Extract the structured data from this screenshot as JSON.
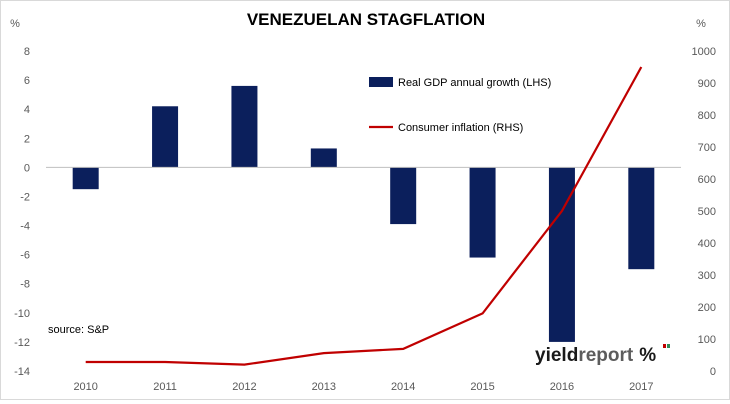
{
  "chart_data": {
    "type": "bar+line",
    "title": "VENEZUELAN STAGFLATION",
    "categories": [
      "2010",
      "2011",
      "2012",
      "2013",
      "2014",
      "2015",
      "2016",
      "2017"
    ],
    "series": [
      {
        "name": "Real GDP annual growth (LHS)",
        "type": "bar",
        "axis": "left",
        "color": "#0b1f5c",
        "values": [
          -1.5,
          4.2,
          5.6,
          1.3,
          -3.9,
          -6.2,
          -12.0,
          -7.0
        ]
      },
      {
        "name": "Consumer inflation (RHS)",
        "type": "line",
        "axis": "right",
        "color": "#c00000",
        "values": [
          28,
          28,
          20,
          56,
          69,
          180,
          500,
          950
        ]
      }
    ],
    "y_left": {
      "label": "%",
      "lim": [
        -14,
        8
      ],
      "ticks": [
        "8",
        "6",
        "4",
        "2",
        "0",
        "-2",
        "-4",
        "-6",
        "-8",
        "-10",
        "-12",
        "-14"
      ]
    },
    "y_right": {
      "label": "%",
      "lim": [
        0,
        1000
      ],
      "ticks": [
        "1000",
        "900",
        "800",
        "700",
        "600",
        "500",
        "400",
        "300",
        "200",
        "100",
        "0"
      ]
    },
    "grid": false,
    "legend_position": "top-center"
  },
  "annotations": {
    "source": "source: S&P"
  },
  "logo": {
    "part1": "yield",
    "part2": "report",
    "symbol": "%"
  }
}
